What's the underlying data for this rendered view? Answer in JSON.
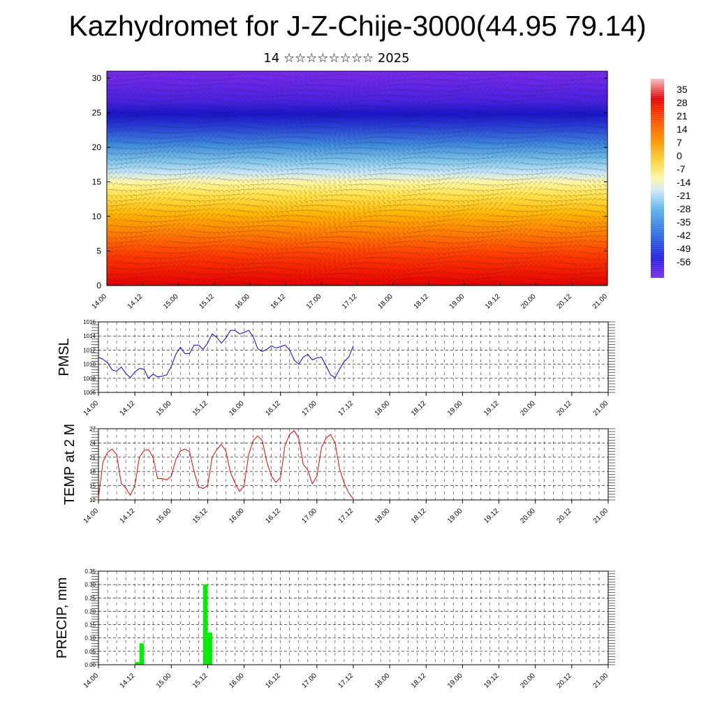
{
  "header": {
    "title": "Kazhydromet for J-Z-Chije-3000(44.95 79.14)",
    "subtitle": "14 ☆☆☆☆☆☆☆☆ 2025"
  },
  "x_ticks": [
    "14.00",
    "14.12",
    "15.00",
    "15.12",
    "16.00",
    "16.12",
    "17.00",
    "17.12",
    "18.00",
    "18.12",
    "19.00",
    "19.12",
    "20.00",
    "20.12",
    "21.00"
  ],
  "chart_data": [
    {
      "type": "heatmap",
      "title": "",
      "ylabel": "",
      "ylim": [
        0,
        31
      ],
      "yticks": [
        "0",
        "5",
        "10",
        "15",
        "20",
        "25",
        "30"
      ],
      "colorbar": {
        "labels": [
          "35",
          "28",
          "21",
          "14",
          "7",
          "0",
          "-7",
          "-14",
          "-21",
          "-28",
          "-35",
          "-42",
          "-49",
          "-56"
        ],
        "min": -63,
        "max": 42
      },
      "overlay": "wind barbs"
    },
    {
      "type": "line",
      "ylabel": "PMSL",
      "ylim": [
        1006,
        1016
      ],
      "yticks": [
        "1016",
        "1014",
        "1012",
        "1010",
        "1008",
        "1006"
      ],
      "color": "#0000ee",
      "x_start": 14.0,
      "x_step_days": 0.125,
      "values": [
        1011.0,
        1010.7,
        1010.2,
        1009.2,
        1009.0,
        1009.6,
        1008.7,
        1008.1,
        1008.9,
        1009.4,
        1009.3,
        1008.0,
        1008.6,
        1008.2,
        1008.3,
        1008.5,
        1009.7,
        1011.4,
        1012.4,
        1011.5,
        1011.5,
        1012.7,
        1012.7,
        1012.1,
        1013.0,
        1014.3,
        1013.8,
        1013.0,
        1013.7,
        1014.8,
        1014.8,
        1014.3,
        1014.5,
        1014.8,
        1013.9,
        1012.2,
        1011.8,
        1012.1,
        1012.6,
        1012.3,
        1012.5,
        1012.7,
        1012.0,
        1010.6,
        1010.0,
        1011.0,
        1011.4,
        1010.6,
        1010.9,
        1011.0,
        1009.8,
        1008.5,
        1008.1,
        1009.3,
        1010.4,
        1011.0,
        1012.6
      ]
    },
    {
      "type": "line",
      "ylabel": "TEMP at 2 M",
      "ylim": [
        12,
        27
      ],
      "yticks": [
        "27",
        "24",
        "21",
        "18",
        "15",
        "12"
      ],
      "color": "#ee0000",
      "x_start": 14.0,
      "x_step_days": 0.125,
      "values": [
        12.5,
        20.0,
        22.0,
        22.7,
        21.5,
        15.5,
        14.5,
        13.0,
        15.0,
        21.0,
        22.4,
        22.6,
        21.0,
        16.5,
        16.5,
        16.2,
        17.0,
        20.5,
        22.3,
        22.7,
        22.2,
        18.0,
        14.8,
        14.4,
        15.0,
        21.0,
        22.6,
        23.7,
        22.3,
        17.8,
        15.6,
        13.8,
        15.0,
        21.5,
        24.5,
        25.5,
        24.5,
        20.0,
        17.0,
        15.7,
        16.7,
        23.5,
        25.8,
        26.6,
        25.0,
        19.5,
        18.3,
        15.4,
        17.0,
        23.0,
        25.0,
        25.8,
        24.0,
        18.5,
        15.5,
        13.5,
        12.2
      ]
    },
    {
      "type": "bar",
      "ylabel": "PRECIP, mm",
      "ylim": [
        0,
        0.35
      ],
      "yticks": [
        "0.35",
        "0.30",
        "0.25",
        "0.20",
        "0.15",
        "0.10",
        "0.05",
        "0.00"
      ],
      "color": "#00ee00",
      "bars": [
        {
          "x": 15.0625,
          "value": 0.01
        },
        {
          "x": 15.1875,
          "value": 0.08
        },
        {
          "x": 16.9375,
          "value": 0.3
        },
        {
          "x": 17.0625,
          "value": 0.12
        }
      ]
    }
  ]
}
